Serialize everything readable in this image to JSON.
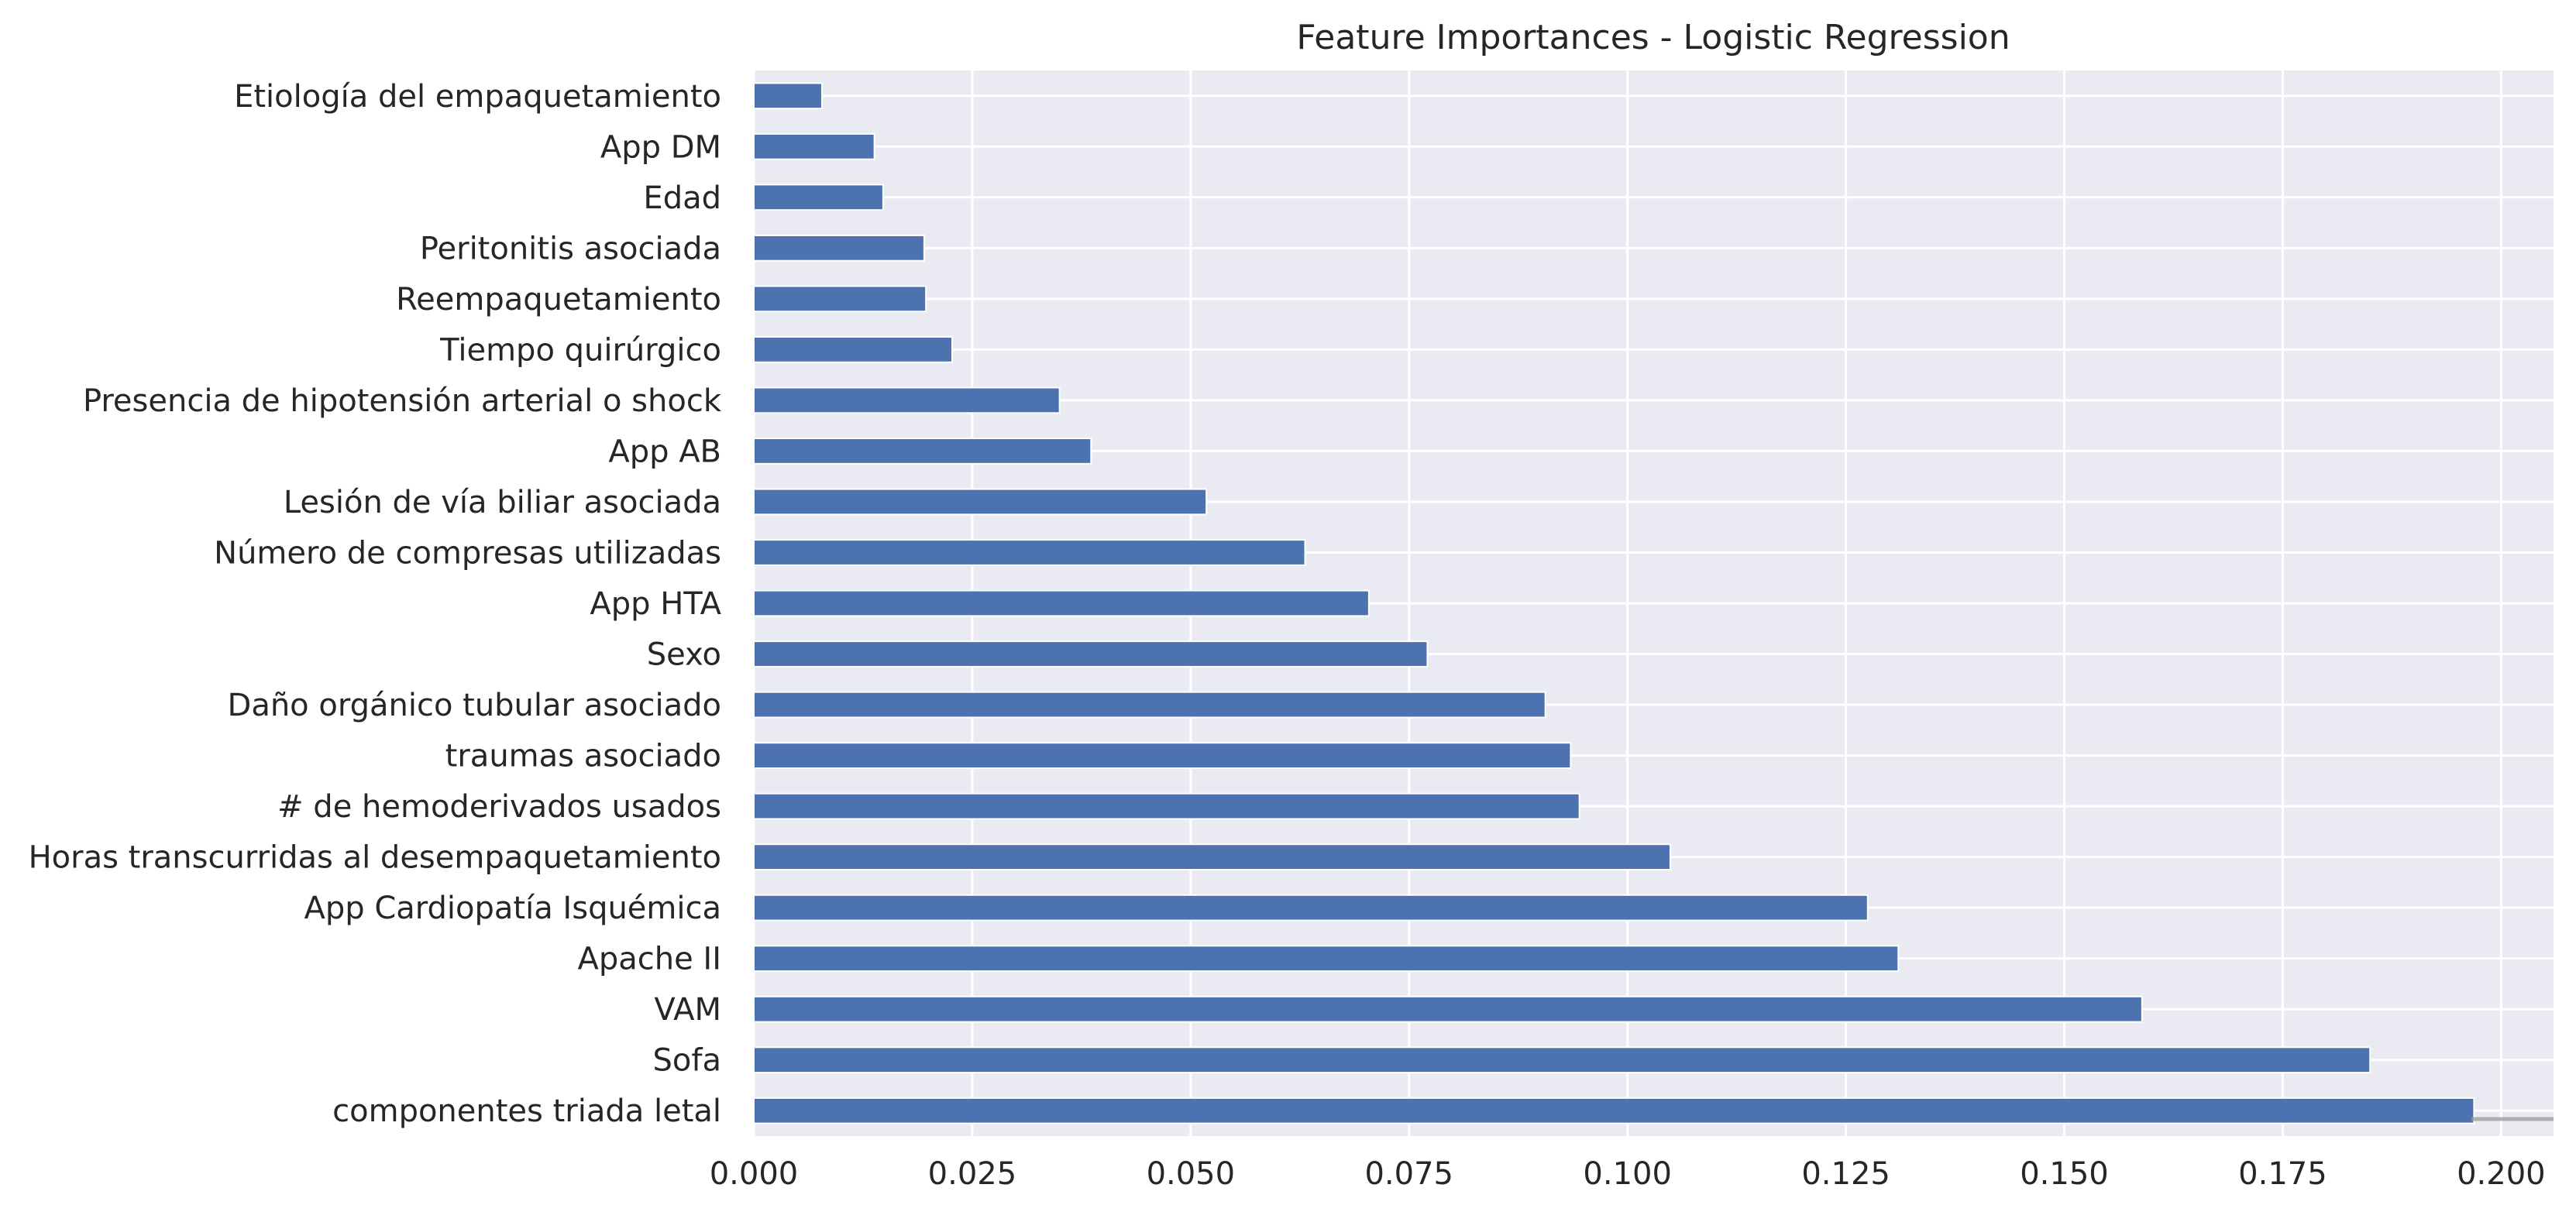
{
  "chart_data": {
    "type": "bar",
    "orientation": "horizontal",
    "title": "Feature Importances - Logistic Regression",
    "xlabel": "",
    "ylabel": "",
    "xlim": [
      0,
      0.206
    ],
    "xticks": [
      0.0,
      0.025,
      0.05,
      0.075,
      0.1,
      0.125,
      0.15,
      0.175,
      0.2
    ],
    "xtick_labels": [
      "0.000",
      "0.025",
      "0.050",
      "0.075",
      "0.100",
      "0.125",
      "0.150",
      "0.175",
      "0.200"
    ],
    "grid": true,
    "colors": {
      "bar": "#4c72b0",
      "background": "#eaeaf2",
      "grid": "#ffffff"
    },
    "categories": [
      "Etiología del empaquetamiento",
      "App DM",
      "Edad",
      "Peritonitis asociada",
      "Reempaquetamiento",
      "Tiempo quirúrgico",
      "Presencia de hipotensión arterial o shock",
      "App AB",
      "Lesión de vía biliar asociada",
      "Número de compresas utilizadas",
      "App HTA",
      "Sexo",
      "Daño orgánico tubular asociado",
      "traumas asociado",
      "# de hemoderivados  usados",
      "Horas transcurridas al desempaquetamiento",
      "App Cardiopatía Isquémica",
      "Apache II",
      "VAM",
      "Sofa",
      "componentes triada letal"
    ],
    "values": [
      0.0078,
      0.0138,
      0.0148,
      0.0195,
      0.0197,
      0.0227,
      0.035,
      0.0386,
      0.0518,
      0.0631,
      0.0704,
      0.0771,
      0.0906,
      0.0935,
      0.0945,
      0.1049,
      0.1275,
      0.131,
      0.1589,
      0.185,
      0.1969
    ]
  }
}
